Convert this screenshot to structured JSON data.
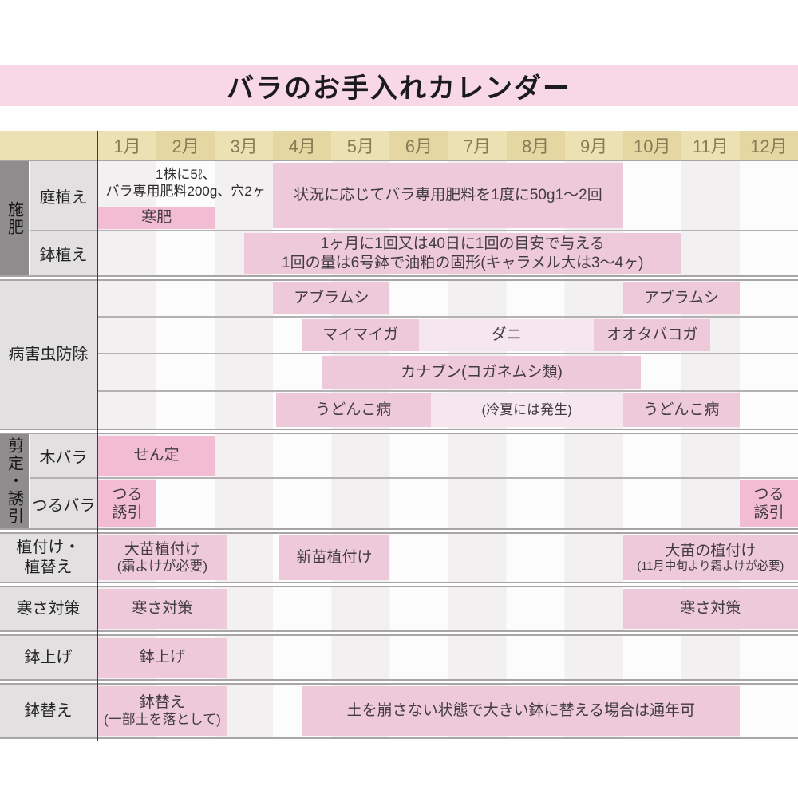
{
  "title": "バラのお手入れカレンダー",
  "months": [
    "1月",
    "2月",
    "3月",
    "4月",
    "5月",
    "6月",
    "7月",
    "8月",
    "9月",
    "10月",
    "11月",
    "12月"
  ],
  "colors": {
    "title_bg": "#f8d7e6",
    "header_tan": "#ece1b3",
    "header_tan_alt": "#e4d7a2",
    "bar_pink": "#edc9da",
    "bar_pink_strong": "#f2bcd3",
    "bar_pink_light": "#f6e6ee",
    "label_gray": "#e2e0e1",
    "group_strip_gray": "#8e8c8d"
  },
  "chart_data": {
    "type": "table",
    "title": "バラのお手入れカレンダー",
    "x_axis": "month (1-12)",
    "groups": [
      {
        "label": "施肥",
        "label_style": "vertical-strip",
        "rows": [
          {
            "label": "庭植え",
            "bars": [
              {
                "text": "1株に5ℓ、\nバラ専用肥料200g、穴2ヶ",
                "start": 0,
                "end": 3,
                "style": "note",
                "v": "top"
              },
              {
                "text": "状況に応じてバラ専用肥料を1度に50g1〜2回",
                "start": 3,
                "end": 9,
                "style": "pink",
                "v": "full"
              },
              {
                "text": "寒肥",
                "start": 0,
                "end": 2,
                "style": "strong",
                "v": "bottom"
              }
            ]
          },
          {
            "label": "鉢植え",
            "bars": [
              {
                "text": "1ヶ月に1回又は40日に1回の目安で与える\n1回の量は6号鉢で油粕の固形(キャラメル大は3〜4ヶ)",
                "start": 2.5,
                "end": 10,
                "style": "pink",
                "v": "full"
              }
            ]
          }
        ]
      },
      {
        "label": "病害虫防除",
        "label_style": "block",
        "rows": [
          {
            "bars": [
              {
                "text": "アブラムシ",
                "start": 3,
                "end": 5,
                "style": "pink"
              },
              {
                "text": "アブラムシ",
                "start": 9,
                "end": 11,
                "style": "pink"
              }
            ]
          },
          {
            "bars": [
              {
                "text": "マイマイガ",
                "start": 3.5,
                "end": 5.5,
                "style": "pink"
              },
              {
                "text": "ダニ",
                "start": 5.5,
                "end": 8.5,
                "style": "light"
              },
              {
                "text": "オオタバコガ",
                "start": 8.5,
                "end": 10.5,
                "style": "pink"
              }
            ]
          },
          {
            "bars": [
              {
                "text": "カナブン(コガネムシ類)",
                "start": 3.85,
                "end": 9.3,
                "style": "pink"
              }
            ]
          },
          {
            "bars": [
              {
                "text": "うどんこ病",
                "start": 3.05,
                "end": 5.7,
                "style": "pink"
              },
              {
                "text": "(冷夏には発生)",
                "start": 5.7,
                "end": 9,
                "style": "light"
              },
              {
                "text": "うどんこ病",
                "start": 9,
                "end": 11,
                "style": "pink"
              }
            ]
          }
        ]
      },
      {
        "label": "剪定・誘引",
        "label_style": "vertical-strip",
        "rows": [
          {
            "label": "木バラ",
            "bars": [
              {
                "text": "せん定",
                "start": 0,
                "end": 2,
                "style": "strong"
              }
            ]
          },
          {
            "label": "つるバラ",
            "bars": [
              {
                "text": "つる\n誘引",
                "start": 0,
                "end": 1,
                "style": "strong"
              },
              {
                "text": "つる\n誘引",
                "start": 11,
                "end": 12,
                "style": "strong"
              }
            ]
          }
        ]
      },
      {
        "label": "植付け・\n植替え",
        "label_style": "block",
        "rows": [
          {
            "bars": [
              {
                "text": "大苗植付け\n(霜よけが必要)",
                "start": 0,
                "end": 2.2,
                "style": "pink"
              },
              {
                "text": "新苗植付け",
                "start": 3.1,
                "end": 5,
                "style": "pink"
              },
              {
                "text": "大苗の植付け\n(11月中旬より霜よけが必要)",
                "start": 9,
                "end": 12,
                "style": "pink",
                "small2": true
              }
            ]
          }
        ]
      },
      {
        "label": "寒さ対策",
        "label_style": "block",
        "rows": [
          {
            "bars": [
              {
                "text": "寒さ対策",
                "start": 0,
                "end": 2.2,
                "style": "pink"
              },
              {
                "text": "寒さ対策",
                "start": 9,
                "end": 12,
                "style": "pink"
              }
            ]
          }
        ]
      },
      {
        "label": "鉢上げ",
        "label_style": "block",
        "rows": [
          {
            "bars": [
              {
                "text": "鉢上げ",
                "start": 0,
                "end": 2.2,
                "style": "pink"
              }
            ]
          }
        ]
      },
      {
        "label": "鉢替え",
        "label_style": "block",
        "rows": [
          {
            "bars": [
              {
                "text": "鉢替え\n(一部土を落として)",
                "start": 0,
                "end": 2.2,
                "style": "pink"
              },
              {
                "text": "土を崩さない状態で大きい鉢に替える場合は通年可",
                "start": 3.5,
                "end": 11,
                "style": "pink"
              }
            ]
          }
        ]
      }
    ]
  }
}
